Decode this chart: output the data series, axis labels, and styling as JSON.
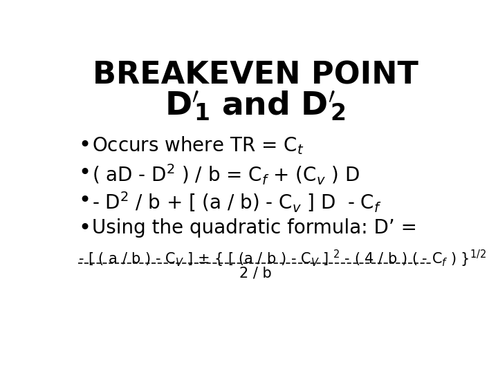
{
  "background_color": "#ffffff",
  "title_line1": "BREAKEVEN POINT",
  "title_line2": "D’$_1$ and D’$_2$",
  "bullet_items": [
    "Occurs where TR = C$_t$",
    "( aD - D$^2$ ) / b = C$_f$ + (C$_v$ ) D",
    "- D$^2$ / b + [ (a / b) - C$_v$ ] D  - C$_f$",
    "Using the quadratic formula: D’ ="
  ],
  "formula_numerator": "- [ ( a / b ) - C$_V$ ] ± { [ (a / b ) - C$_V$ ] $^2$ - ( 4 / b ) ( - C$_f$ ) }$^{1/2}$",
  "formula_denominator": "2 / b",
  "font_family": "DejaVu Sans",
  "title_fontsize": 32,
  "title2_fontsize": 34,
  "bullet_fontsize": 20,
  "formula_fontsize": 15,
  "text_color": "#000000",
  "figsize": [
    7.2,
    5.4
  ],
  "dpi": 100
}
